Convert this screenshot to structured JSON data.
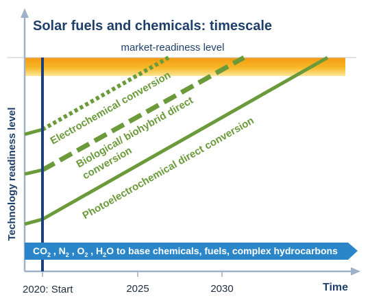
{
  "title": "Solar fuels and chemicals: timescale",
  "market_label": "market-readiness level",
  "y_axis_label": "Technology readiness level",
  "x_axis_label": "Time",
  "x_ticks": [
    "2020: Start",
    "2025",
    "2030"
  ],
  "arrow_label": {
    "prefix": "CO",
    "co2_sub": "2",
    "n": " , N",
    "n2_sub": "2",
    "o": " , O",
    "o2_sub": "2",
    "h": " , H",
    "h2o_sub": "2",
    "suffix": "O to base chemicals, fuels, complex hydrocarbons"
  },
  "pathways": [
    {
      "label": "Electrochemical conversion",
      "style": "dotted"
    },
    {
      "label_line1": "Biological/ biohybrid direct",
      "label_line2": "conversion",
      "style": "dashed"
    },
    {
      "label": "Photoelectrochemical direct conversion",
      "style": "solid"
    }
  ],
  "colors": {
    "title": "#1f3f6b",
    "axis": "#9fb1c8",
    "start_line": "#1c3f7a",
    "pathway": "#6a9a3a",
    "band_top": "#f39a12",
    "band_bottom": "#fde79a",
    "arrow": "#2a86c9",
    "tick_text": "#1f2d3d"
  }
}
